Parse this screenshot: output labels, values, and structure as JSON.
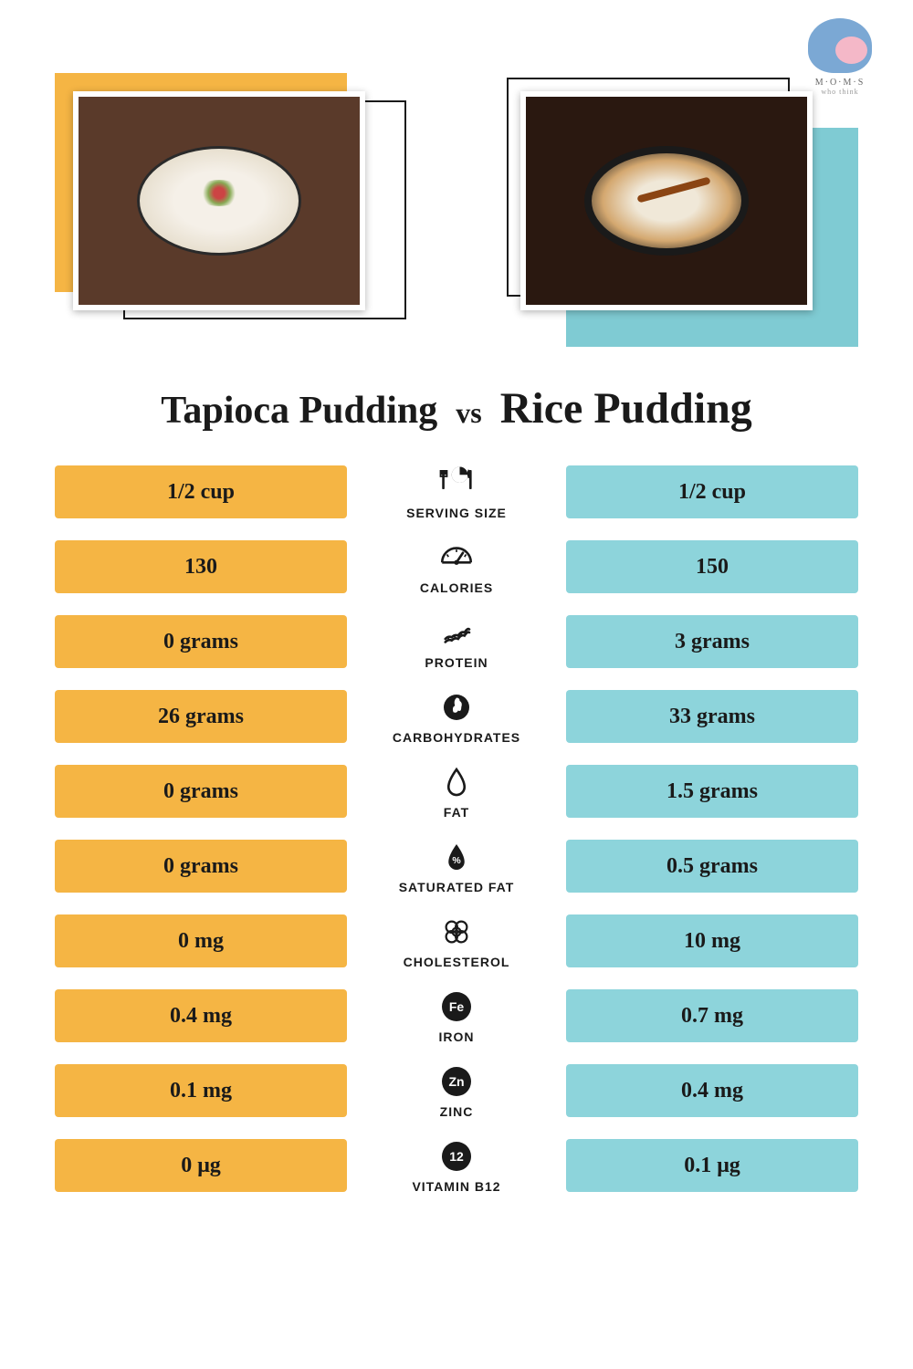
{
  "logo": {
    "text": "M·O·M·S",
    "subtext": "who think"
  },
  "titles": {
    "left": "Tapioca Pudding",
    "vs": "vs",
    "right": "Rice Pudding"
  },
  "colors": {
    "orange": "#f5b544",
    "teal": "#8dd4db",
    "teal_accent": "#7fcbd3",
    "text": "#1a1a1a",
    "bg": "#ffffff"
  },
  "rows": [
    {
      "label": "SERVING SIZE",
      "icon": "serving",
      "left": "1/2 cup",
      "right": "1/2 cup"
    },
    {
      "label": "CALORIES",
      "icon": "calories",
      "left": "130",
      "right": "150"
    },
    {
      "label": "PROTEIN",
      "icon": "protein",
      "left": "0 grams",
      "right": "3 grams"
    },
    {
      "label": "CARBOHYDRATES",
      "icon": "carbs",
      "left": "26 grams",
      "right": "33 grams"
    },
    {
      "label": "FAT",
      "icon": "fat",
      "left": "0 grams",
      "right": "1.5 grams"
    },
    {
      "label": "SATURATED FAT",
      "icon": "satfat",
      "left": "0 grams",
      "right": "0.5 grams"
    },
    {
      "label": "CHOLESTEROL",
      "icon": "cholesterol",
      "left": "0 mg",
      "right": "10 mg"
    },
    {
      "label": "IRON",
      "icon": "iron",
      "left": "0.4 mg",
      "right": "0.7 mg"
    },
    {
      "label": "ZINC",
      "icon": "zinc",
      "left": "0.1 mg",
      "right": "0.4 mg"
    },
    {
      "label": "VITAMIN B12",
      "icon": "b12",
      "left": "0 μg",
      "right": "0.1 μg"
    }
  ]
}
